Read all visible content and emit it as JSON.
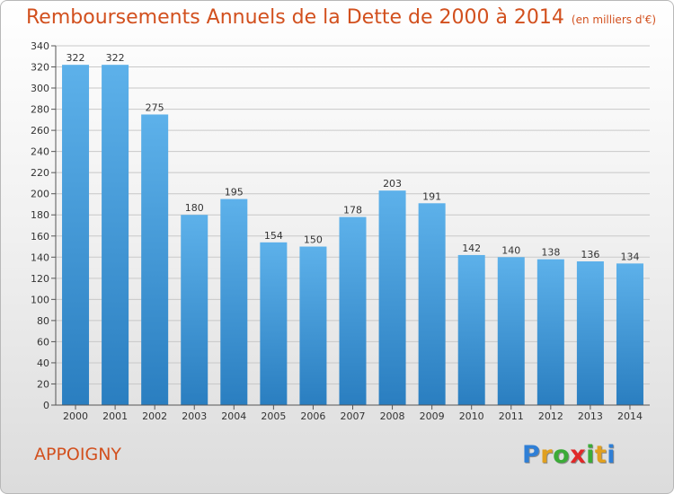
{
  "title": "Remboursements Annuels de la Dette de 2000 à 2014",
  "unit": "(en milliers d'€)",
  "place": "APPOIGNY",
  "logo": {
    "letters": [
      {
        "ch": "P",
        "color": "#2f7fd6"
      },
      {
        "ch": "r",
        "color": "#e0a020"
      },
      {
        "ch": "o",
        "color": "#3cab38"
      },
      {
        "ch": "x",
        "color": "#e02828"
      },
      {
        "ch": "i",
        "color": "#3cab38"
      },
      {
        "ch": "t",
        "color": "#e0a020"
      },
      {
        "ch": "i",
        "color": "#2f7fd6"
      }
    ]
  },
  "colors": {
    "accent": "#d2501e",
    "bar_top": "#5db1ea",
    "bar_bottom": "#2a7ec0",
    "grid": "#c8c8c8"
  },
  "chart_data": {
    "type": "bar",
    "categories": [
      "2000",
      "2001",
      "2002",
      "2003",
      "2004",
      "2005",
      "2006",
      "2007",
      "2008",
      "2009",
      "2010",
      "2011",
      "2012",
      "2013",
      "2014"
    ],
    "values": [
      322,
      322,
      275,
      180,
      195,
      154,
      150,
      178,
      203,
      191,
      142,
      140,
      138,
      136,
      134
    ],
    "ylim": [
      0,
      340
    ],
    "yticks": [
      0,
      20,
      40,
      60,
      80,
      100,
      120,
      140,
      160,
      180,
      200,
      220,
      240,
      260,
      280,
      300,
      320,
      340
    ],
    "grid": true,
    "xlabel": "",
    "ylabel": ""
  }
}
